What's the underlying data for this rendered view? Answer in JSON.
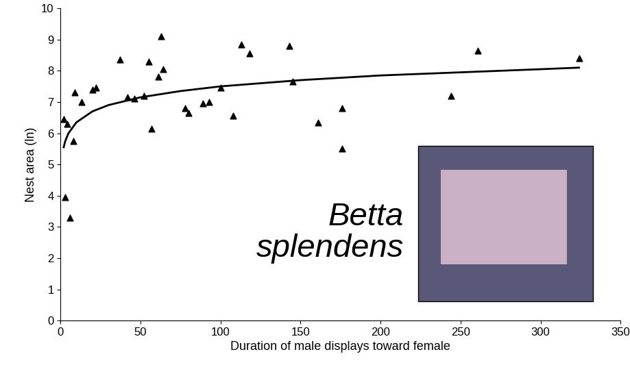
{
  "chart_data": {
    "type": "scatter",
    "x_label": "Duration of male displays toward female",
    "y_label": "Nest area (ln)",
    "annotations": [
      {
        "text": "Betta splendens"
      }
    ],
    "xlim": [
      0,
      350
    ],
    "xticks": [
      0,
      50,
      100,
      150,
      200,
      250,
      300,
      350
    ],
    "ylim": [
      0,
      10
    ],
    "yticks": [
      0,
      1,
      2,
      3,
      4,
      5,
      6,
      7,
      8,
      9,
      10
    ],
    "grid": false,
    "series": [
      {
        "type": "scatter",
        "marker": "triangle",
        "color": "#000000",
        "x": [
          2,
          4,
          3,
          6,
          8,
          9,
          13,
          20,
          22,
          37,
          42,
          46,
          52,
          55,
          57,
          61,
          63,
          64,
          78,
          80,
          89,
          93,
          100,
          108,
          113,
          118,
          143,
          145,
          161,
          176,
          176,
          244,
          261,
          324
        ],
        "values": [
          6.45,
          6.3,
          3.95,
          3.3,
          5.75,
          7.3,
          7.0,
          7.4,
          7.45,
          8.35,
          7.15,
          7.1,
          7.2,
          8.3,
          6.15,
          7.8,
          9.1,
          8.05,
          6.8,
          6.65,
          6.95,
          7.0,
          7.45,
          6.55,
          8.85,
          8.55,
          8.8,
          7.65,
          6.35,
          6.8,
          5.5,
          7.2,
          8.65,
          8.4
        ]
      },
      {
        "type": "line",
        "line_style": "solid",
        "color": "#000000",
        "x": [
          2,
          3,
          5,
          10,
          20,
          30,
          50,
          75,
          100,
          150,
          200,
          250,
          300,
          324
        ],
        "values": [
          5.55,
          5.75,
          6.0,
          6.35,
          6.7,
          6.9,
          7.15,
          7.35,
          7.5,
          7.7,
          7.85,
          7.95,
          8.05,
          8.1
        ]
      }
    ]
  }
}
